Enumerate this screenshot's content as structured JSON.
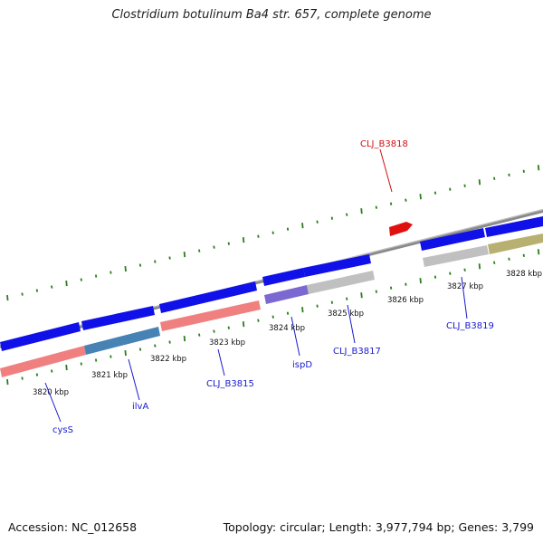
{
  "title": "Clostridium botulinum Ba4 str. 657, complete genome",
  "footer": {
    "accession": "Accession: NC_012658",
    "topology": "Topology: circular; Length: 3,977,794 bp; Genes: 3,799"
  },
  "colors": {
    "backbone": "#8a8a8a",
    "ticks": "#2e7d1e",
    "cds_blue": "#1010e8",
    "highlight": "#e01010",
    "label_blue": "#1a1ad0",
    "label_red": "#d01010"
  },
  "kbp_labels": [
    "3820 kbp",
    "3821 kbp",
    "3822 kbp",
    "3823 kbp",
    "3824 kbp",
    "3825 kbp",
    "3826 kbp",
    "3827 kbp",
    "3828 kbp"
  ],
  "gene_labels": [
    {
      "text": "cysS"
    },
    {
      "text": "ilvA"
    },
    {
      "text": "CLJ_B3815"
    },
    {
      "text": "ispD"
    },
    {
      "text": "CLJ_B3817"
    },
    {
      "text": "CLJ_B3818"
    },
    {
      "text": "CLJ_B3819"
    }
  ]
}
